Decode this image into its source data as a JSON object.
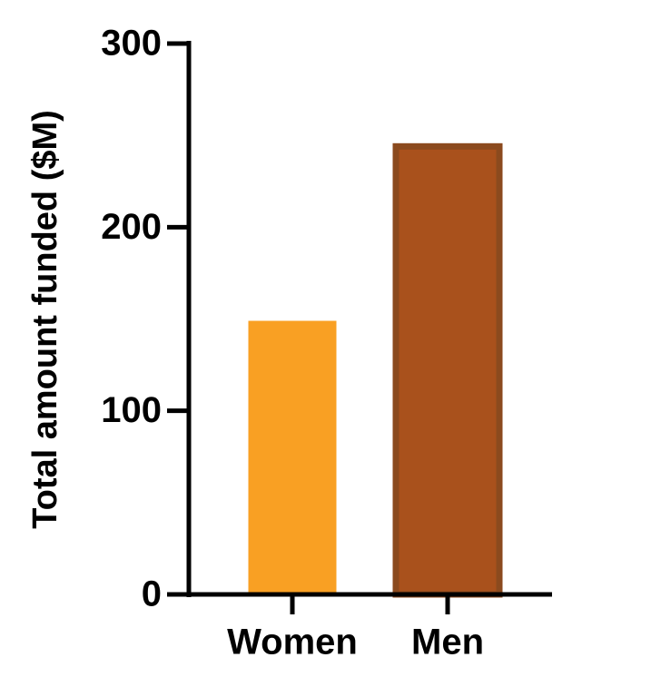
{
  "chart_data": {
    "type": "bar",
    "ylabel": "Total amount funded ($M)",
    "categories": [
      "Women",
      "Men"
    ],
    "values": [
      149,
      244
    ],
    "colors": [
      "#f9a023",
      "#a9511c"
    ],
    "ylim": [
      0,
      300
    ],
    "yticks": [
      0,
      100,
      200,
      300
    ]
  }
}
